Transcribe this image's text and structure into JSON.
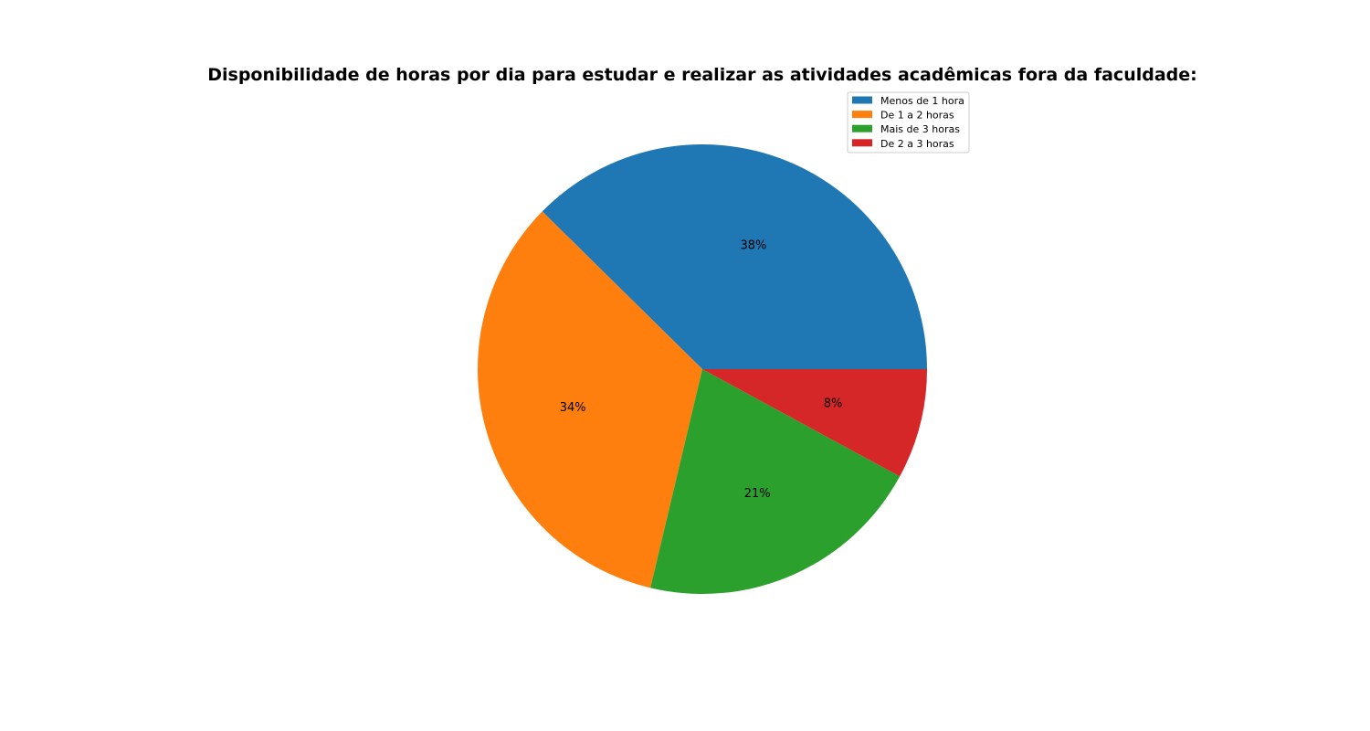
{
  "chart_data": {
    "type": "pie",
    "title": "Disponibilidade de horas por dia para estudar e realizar as atividades acadêmicas fora da faculdade:",
    "autopct_format": "percent-integer",
    "legend_location": "top-right",
    "slices": [
      {
        "label": "Menos de 1 hora",
        "value": 38,
        "pct_label": "38%",
        "color": "#1f77b4"
      },
      {
        "label": "De 1 a 2 horas",
        "value": 34,
        "pct_label": "34%",
        "color": "#ff7f0e"
      },
      {
        "label": "Mais de 3 horas",
        "value": 21,
        "pct_label": "21%",
        "color": "#2ca02c"
      },
      {
        "label": "De 2 a 3 horas",
        "value": 8,
        "pct_label": "8%",
        "color": "#d62728"
      }
    ]
  }
}
